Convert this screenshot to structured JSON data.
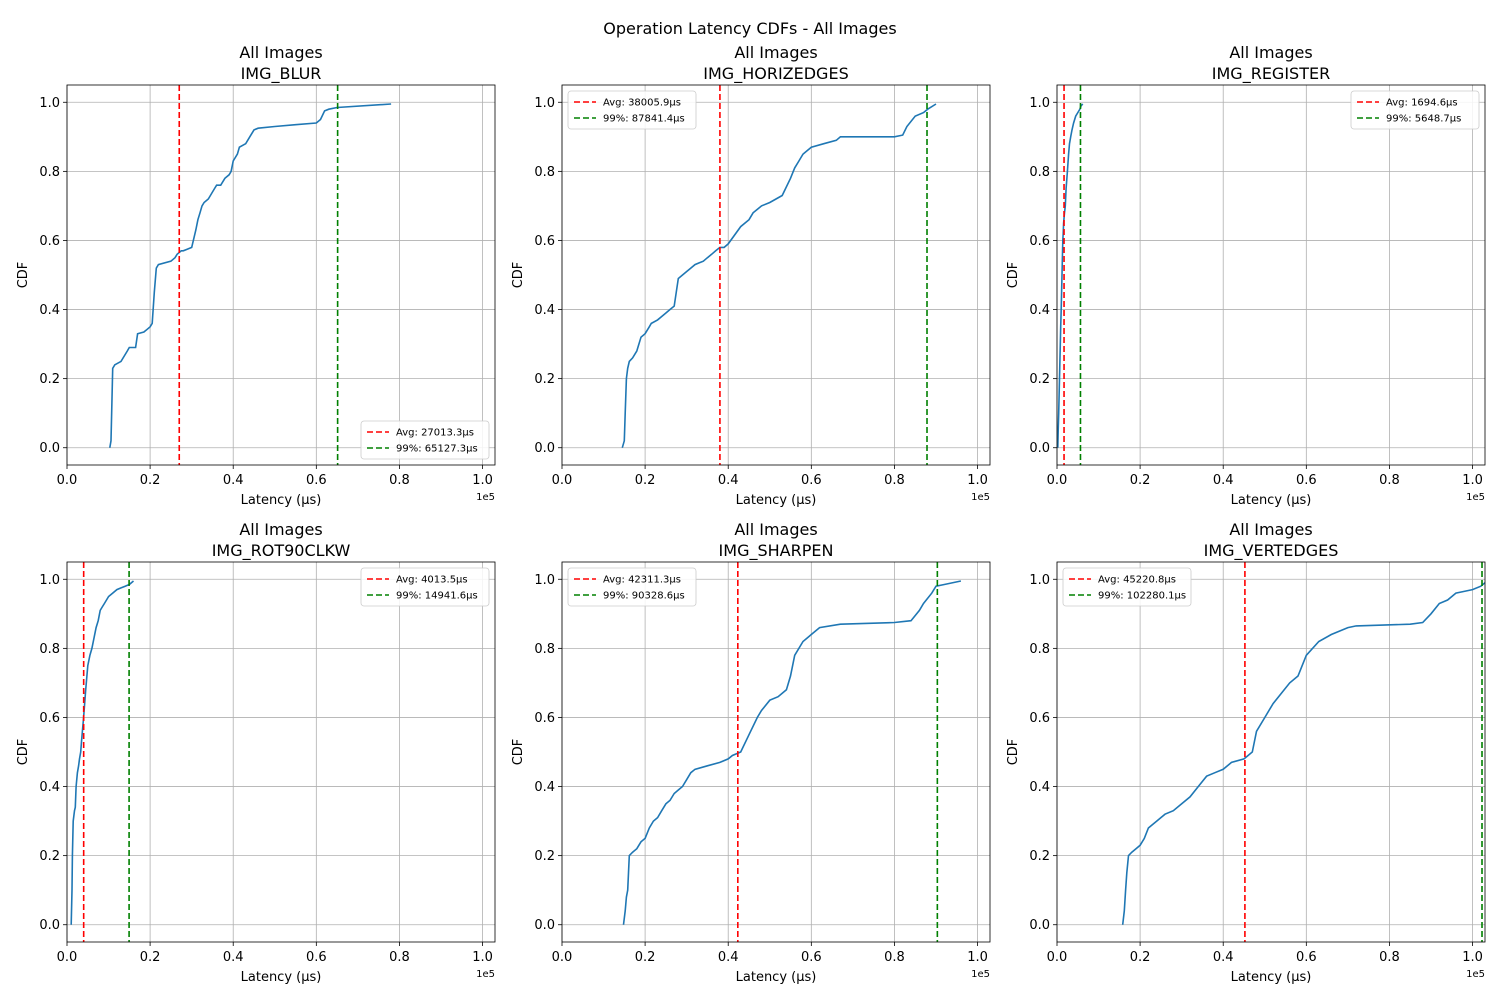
{
  "figure_title": "Operation Latency CDFs - All Images",
  "colors": {
    "cdf": "#1f77b4",
    "avg": "#ff0000",
    "p99": "#008000"
  },
  "chart_data": [
    {
      "type": "line",
      "title": "All Images",
      "subtitle": "IMG_BLUR",
      "xlabel": "Latency (µs)",
      "ylabel": "CDF",
      "x_scale_label": "1e5",
      "xlim": [
        0,
        1.03
      ],
      "ylim": [
        -0.05,
        1.05
      ],
      "xticks": [
        "0.0",
        "0.2",
        "0.4",
        "0.6",
        "0.8",
        "1.0"
      ],
      "yticks": [
        "0.0",
        "0.2",
        "0.4",
        "0.6",
        "0.8",
        "1.0"
      ],
      "grid": true,
      "legend_position": "lower-right",
      "avg": {
        "label": "Avg: 27013.3µs",
        "value": 0.270133
      },
      "p99": {
        "label": "99%: 65127.3µs",
        "value": 0.651273
      },
      "x": [
        0.103,
        0.106,
        0.108,
        0.11,
        0.115,
        0.13,
        0.145,
        0.15,
        0.165,
        0.17,
        0.185,
        0.19,
        0.2,
        0.205,
        0.21,
        0.215,
        0.22,
        0.25,
        0.26,
        0.265,
        0.275,
        0.28,
        0.29,
        0.3,
        0.31,
        0.315,
        0.32,
        0.325,
        0.33,
        0.34,
        0.345,
        0.35,
        0.355,
        0.36,
        0.37,
        0.38,
        0.39,
        0.395,
        0.4,
        0.41,
        0.415,
        0.43,
        0.44,
        0.45,
        0.46,
        0.5,
        0.55,
        0.6,
        0.61,
        0.62,
        0.63,
        0.65,
        0.78
      ],
      "y": [
        0.0,
        0.02,
        0.13,
        0.23,
        0.24,
        0.25,
        0.28,
        0.29,
        0.29,
        0.33,
        0.335,
        0.34,
        0.35,
        0.36,
        0.45,
        0.52,
        0.53,
        0.54,
        0.55,
        0.56,
        0.57,
        0.57,
        0.575,
        0.58,
        0.63,
        0.66,
        0.68,
        0.7,
        0.71,
        0.72,
        0.73,
        0.74,
        0.75,
        0.76,
        0.76,
        0.78,
        0.79,
        0.8,
        0.83,
        0.85,
        0.87,
        0.88,
        0.9,
        0.92,
        0.925,
        0.93,
        0.935,
        0.94,
        0.95,
        0.975,
        0.98,
        0.985,
        0.995
      ]
    },
    {
      "type": "line",
      "title": "All Images",
      "subtitle": "IMG_HORIZEDGES",
      "xlabel": "Latency (µs)",
      "ylabel": "CDF",
      "x_scale_label": "1e5",
      "xlim": [
        0,
        1.03
      ],
      "ylim": [
        -0.05,
        1.05
      ],
      "xticks": [
        "0.0",
        "0.2",
        "0.4",
        "0.6",
        "0.8",
        "1.0"
      ],
      "yticks": [
        "0.0",
        "0.2",
        "0.4",
        "0.6",
        "0.8",
        "1.0"
      ],
      "grid": true,
      "legend_position": "upper-left",
      "avg": {
        "label": "Avg: 38005.9µs",
        "value": 0.380059
      },
      "p99": {
        "label": "99%: 87841.4µs",
        "value": 0.878414
      },
      "x": [
        0.145,
        0.15,
        0.152,
        0.155,
        0.158,
        0.162,
        0.17,
        0.18,
        0.19,
        0.2,
        0.21,
        0.215,
        0.23,
        0.24,
        0.25,
        0.26,
        0.27,
        0.28,
        0.29,
        0.3,
        0.31,
        0.32,
        0.33,
        0.34,
        0.35,
        0.36,
        0.37,
        0.38,
        0.39,
        0.4,
        0.43,
        0.45,
        0.46,
        0.47,
        0.48,
        0.5,
        0.53,
        0.55,
        0.56,
        0.57,
        0.58,
        0.59,
        0.6,
        0.63,
        0.66,
        0.67,
        0.8,
        0.82,
        0.83,
        0.85,
        0.87,
        0.88,
        0.9
      ],
      "y": [
        0.0,
        0.02,
        0.1,
        0.2,
        0.23,
        0.25,
        0.26,
        0.28,
        0.32,
        0.33,
        0.35,
        0.36,
        0.37,
        0.38,
        0.39,
        0.4,
        0.41,
        0.49,
        0.5,
        0.51,
        0.52,
        0.53,
        0.535,
        0.54,
        0.55,
        0.56,
        0.57,
        0.58,
        0.58,
        0.59,
        0.64,
        0.66,
        0.68,
        0.69,
        0.7,
        0.71,
        0.73,
        0.78,
        0.81,
        0.83,
        0.85,
        0.86,
        0.87,
        0.88,
        0.89,
        0.9,
        0.9,
        0.905,
        0.93,
        0.96,
        0.97,
        0.98,
        0.995
      ]
    },
    {
      "type": "line",
      "title": "All Images",
      "subtitle": "IMG_REGISTER",
      "xlabel": "Latency (µs)",
      "ylabel": "CDF",
      "x_scale_label": "1e5",
      "xlim": [
        0,
        1.03
      ],
      "ylim": [
        -0.05,
        1.05
      ],
      "xticks": [
        "0.0",
        "0.2",
        "0.4",
        "0.6",
        "0.8",
        "1.0"
      ],
      "yticks": [
        "0.0",
        "0.2",
        "0.4",
        "0.6",
        "0.8",
        "1.0"
      ],
      "grid": true,
      "legend_position": "upper-right",
      "avg": {
        "label": "Avg: 1694.6µs",
        "value": 0.016946
      },
      "p99": {
        "label": "99%: 5648.7µs",
        "value": 0.056487
      },
      "x": [
        0.002,
        0.003,
        0.004,
        0.005,
        0.006,
        0.007,
        0.008,
        0.009,
        0.01,
        0.011,
        0.012,
        0.013,
        0.014,
        0.015,
        0.016,
        0.018,
        0.02,
        0.022,
        0.025,
        0.028,
        0.03,
        0.033,
        0.036,
        0.04,
        0.045,
        0.05,
        0.055,
        0.058,
        0.062
      ],
      "y": [
        0.0,
        0.05,
        0.1,
        0.15,
        0.2,
        0.25,
        0.3,
        0.35,
        0.4,
        0.45,
        0.5,
        0.55,
        0.6,
        0.62,
        0.65,
        0.68,
        0.7,
        0.75,
        0.8,
        0.85,
        0.88,
        0.9,
        0.92,
        0.94,
        0.96,
        0.97,
        0.98,
        0.99,
        0.995
      ]
    },
    {
      "type": "line",
      "title": "All Images",
      "subtitle": "IMG_ROT90CLKW",
      "xlabel": "Latency (µs)",
      "ylabel": "CDF",
      "x_scale_label": "1e5",
      "xlim": [
        0,
        1.03
      ],
      "ylim": [
        -0.05,
        1.05
      ],
      "xticks": [
        "0.0",
        "0.2",
        "0.4",
        "0.6",
        "0.8",
        "1.0"
      ],
      "yticks": [
        "0.0",
        "0.2",
        "0.4",
        "0.6",
        "0.8",
        "1.0"
      ],
      "grid": true,
      "legend_position": "upper-right",
      "avg": {
        "label": "Avg: 4013.5µs",
        "value": 0.040135
      },
      "p99": {
        "label": "99%: 14941.6µs",
        "value": 0.149416
      },
      "x": [
        0.01,
        0.012,
        0.013,
        0.015,
        0.018,
        0.02,
        0.022,
        0.025,
        0.028,
        0.03,
        0.033,
        0.035,
        0.04,
        0.045,
        0.05,
        0.055,
        0.06,
        0.065,
        0.07,
        0.075,
        0.08,
        0.085,
        0.09,
        0.1,
        0.11,
        0.12,
        0.13,
        0.14,
        0.15,
        0.16
      ],
      "y": [
        0.0,
        0.1,
        0.2,
        0.3,
        0.33,
        0.34,
        0.4,
        0.44,
        0.46,
        0.48,
        0.5,
        0.53,
        0.6,
        0.68,
        0.75,
        0.78,
        0.8,
        0.83,
        0.86,
        0.88,
        0.91,
        0.92,
        0.93,
        0.95,
        0.96,
        0.97,
        0.975,
        0.98,
        0.985,
        0.995
      ]
    },
    {
      "type": "line",
      "title": "All Images",
      "subtitle": "IMG_SHARPEN",
      "xlabel": "Latency (µs)",
      "ylabel": "CDF",
      "x_scale_label": "1e5",
      "xlim": [
        0,
        1.03
      ],
      "ylim": [
        -0.05,
        1.05
      ],
      "xticks": [
        "0.0",
        "0.2",
        "0.4",
        "0.6",
        "0.8",
        "1.0"
      ],
      "yticks": [
        "0.0",
        "0.2",
        "0.4",
        "0.6",
        "0.8",
        "1.0"
      ],
      "grid": true,
      "legend_position": "upper-left",
      "avg": {
        "label": "Avg: 42311.3µs",
        "value": 0.423113
      },
      "p99": {
        "label": "99%: 90328.6µs",
        "value": 0.903286
      },
      "x": [
        0.148,
        0.152,
        0.155,
        0.158,
        0.16,
        0.162,
        0.17,
        0.18,
        0.19,
        0.2,
        0.21,
        0.22,
        0.23,
        0.24,
        0.25,
        0.26,
        0.27,
        0.28,
        0.29,
        0.3,
        0.31,
        0.32,
        0.35,
        0.38,
        0.4,
        0.41,
        0.43,
        0.45,
        0.47,
        0.48,
        0.5,
        0.52,
        0.54,
        0.55,
        0.56,
        0.58,
        0.59,
        0.6,
        0.62,
        0.67,
        0.8,
        0.84,
        0.86,
        0.87,
        0.89,
        0.9,
        0.92,
        0.96
      ],
      "y": [
        0.0,
        0.04,
        0.08,
        0.1,
        0.15,
        0.2,
        0.21,
        0.22,
        0.24,
        0.25,
        0.28,
        0.3,
        0.31,
        0.33,
        0.35,
        0.36,
        0.38,
        0.39,
        0.4,
        0.42,
        0.44,
        0.45,
        0.46,
        0.47,
        0.48,
        0.49,
        0.5,
        0.55,
        0.6,
        0.62,
        0.65,
        0.66,
        0.68,
        0.72,
        0.78,
        0.82,
        0.83,
        0.84,
        0.86,
        0.87,
        0.875,
        0.88,
        0.91,
        0.93,
        0.96,
        0.98,
        0.985,
        0.995
      ]
    },
    {
      "type": "line",
      "title": "All Images",
      "subtitle": "IMG_VERTEDGES",
      "xlabel": "Latency (µs)",
      "ylabel": "CDF",
      "x_scale_label": "1e5",
      "xlim": [
        0,
        1.03
      ],
      "ylim": [
        -0.05,
        1.05
      ],
      "xticks": [
        "0.0",
        "0.2",
        "0.4",
        "0.6",
        "0.8",
        "1.0"
      ],
      "yticks": [
        "0.0",
        "0.2",
        "0.4",
        "0.6",
        "0.8",
        "1.0"
      ],
      "grid": true,
      "legend_position": "upper-left",
      "avg": {
        "label": "Avg: 45220.8µs",
        "value": 0.452208
      },
      "p99": {
        "label": "99%: 102280.1µs",
        "value": 1.022801
      },
      "x": [
        0.158,
        0.162,
        0.165,
        0.168,
        0.172,
        0.18,
        0.19,
        0.2,
        0.21,
        0.22,
        0.23,
        0.24,
        0.25,
        0.26,
        0.28,
        0.3,
        0.32,
        0.34,
        0.36,
        0.38,
        0.4,
        0.42,
        0.45,
        0.46,
        0.47,
        0.48,
        0.5,
        0.52,
        0.54,
        0.56,
        0.58,
        0.6,
        0.63,
        0.66,
        0.7,
        0.72,
        0.85,
        0.88,
        0.9,
        0.92,
        0.94,
        0.96,
        0.98,
        1.0,
        1.02,
        1.03
      ],
      "y": [
        0.0,
        0.04,
        0.1,
        0.15,
        0.2,
        0.21,
        0.22,
        0.23,
        0.25,
        0.28,
        0.29,
        0.3,
        0.31,
        0.32,
        0.33,
        0.35,
        0.37,
        0.4,
        0.43,
        0.44,
        0.45,
        0.47,
        0.48,
        0.49,
        0.5,
        0.56,
        0.6,
        0.64,
        0.67,
        0.7,
        0.72,
        0.78,
        0.82,
        0.84,
        0.86,
        0.865,
        0.87,
        0.875,
        0.9,
        0.93,
        0.94,
        0.96,
        0.965,
        0.97,
        0.98,
        0.99
      ]
    }
  ]
}
